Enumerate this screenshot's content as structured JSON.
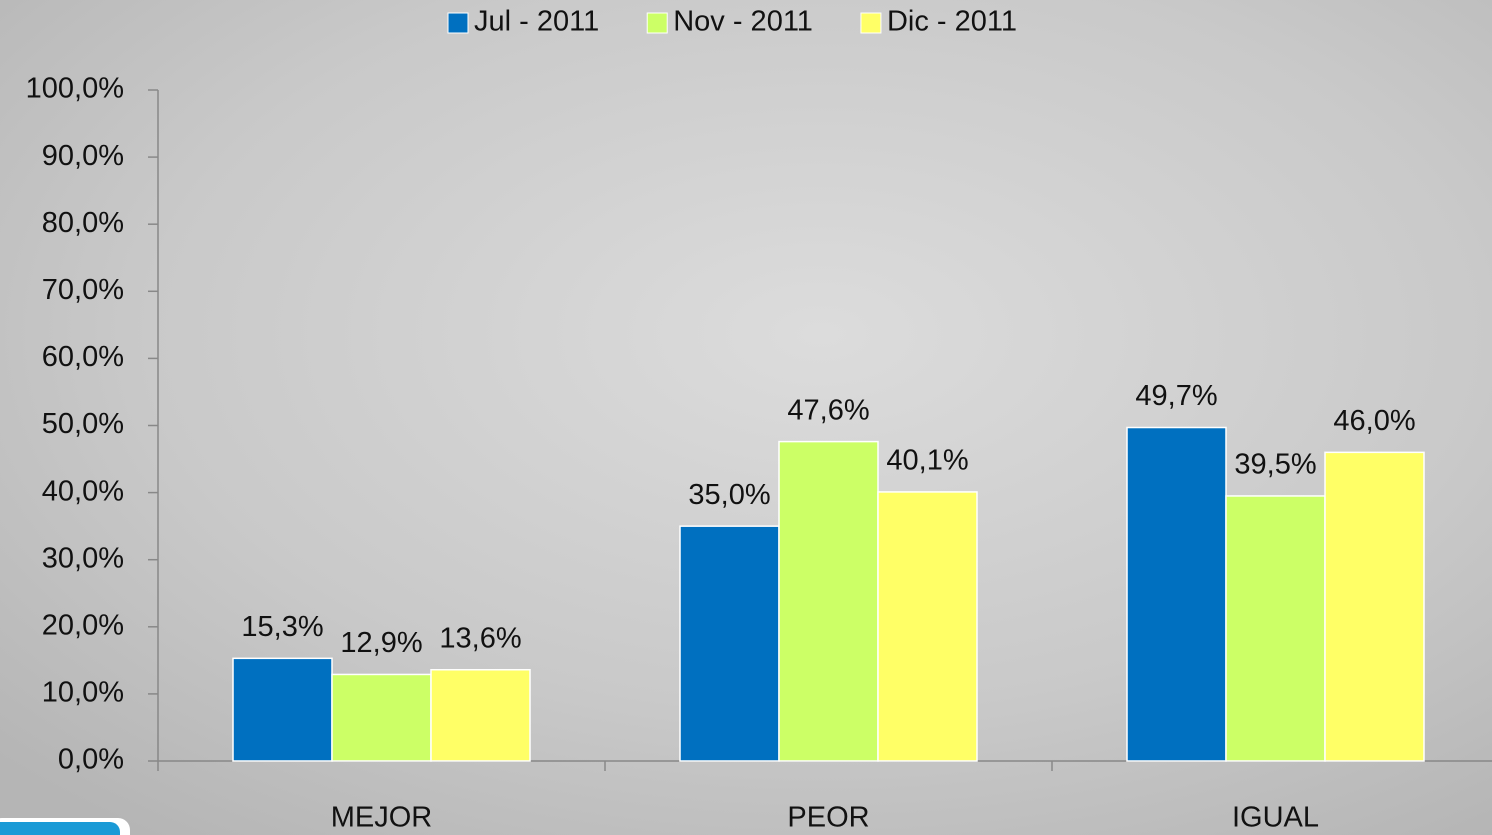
{
  "chart_data": {
    "type": "bar",
    "categories": [
      "MEJOR",
      "PEOR",
      "IGUAL"
    ],
    "series": [
      {
        "name": "Jul - 2011",
        "color": "#0070c0",
        "values": [
          15.3,
          35.0,
          49.7
        ],
        "value_labels": [
          "15,3%",
          "35,0%",
          "49,7%"
        ]
      },
      {
        "name": "Nov - 2011",
        "color": "#ccff66",
        "values": [
          12.9,
          47.6,
          39.5
        ],
        "value_labels": [
          "12,9%",
          "47,6%",
          "39,5%"
        ]
      },
      {
        "name": "Dic - 2011",
        "color": "#ffff66",
        "values": [
          13.6,
          40.1,
          46.0
        ],
        "value_labels": [
          "13,6%",
          "40,1%",
          "46,0%"
        ]
      }
    ],
    "ylim": [
      0,
      100
    ],
    "yticks": [
      {
        "value": 0,
        "label": "0,0%"
      },
      {
        "value": 10,
        "label": "10,0%"
      },
      {
        "value": 20,
        "label": "20,0%"
      },
      {
        "value": 30,
        "label": "30,0%"
      },
      {
        "value": 40,
        "label": "40,0%"
      },
      {
        "value": 50,
        "label": "50,0%"
      },
      {
        "value": 60,
        "label": "60,0%"
      },
      {
        "value": 70,
        "label": "70,0%"
      },
      {
        "value": 80,
        "label": "80,0%"
      },
      {
        "value": 90,
        "label": "90,0%"
      },
      {
        "value": 100,
        "label": "100,0%"
      }
    ],
    "legend": "top"
  }
}
